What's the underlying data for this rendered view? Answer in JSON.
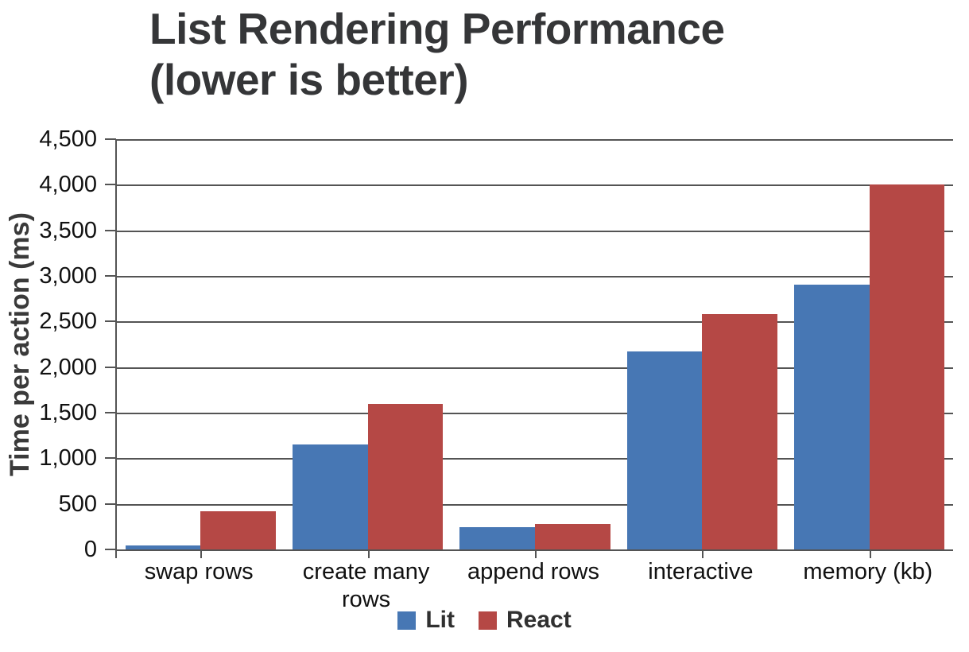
{
  "chart_data": {
    "type": "bar",
    "title": "List Rendering Performance (lower is better)",
    "title_lines": [
      "List Rendering Performance",
      "(lower is better)"
    ],
    "ylabel": "Time per action (ms)",
    "xlabel": "",
    "categories": [
      "swap rows",
      "create many rows",
      "append rows",
      "interactive",
      "memory (kb)"
    ],
    "series": [
      {
        "name": "Lit",
        "color": "#4777B4",
        "values": [
          40,
          1150,
          240,
          2175,
          2900
        ]
      },
      {
        "name": "React",
        "color": "#B54845",
        "values": [
          420,
          1600,
          275,
          2580,
          4000
        ]
      }
    ],
    "ylim": [
      0,
      4500
    ],
    "ytick_step": 500,
    "ytick_labels": [
      "0",
      "500",
      "1,000",
      "1,500",
      "2,000",
      "2,500",
      "3,000",
      "3,500",
      "4,000",
      "4,500"
    ],
    "grid": true,
    "legend_position": "bottom"
  },
  "colors": {
    "axis": "#545454",
    "grid": "#545454",
    "title_text": "#353638",
    "tick_text": "#111111",
    "legend_text": "#303030",
    "background": "#ffffff"
  }
}
